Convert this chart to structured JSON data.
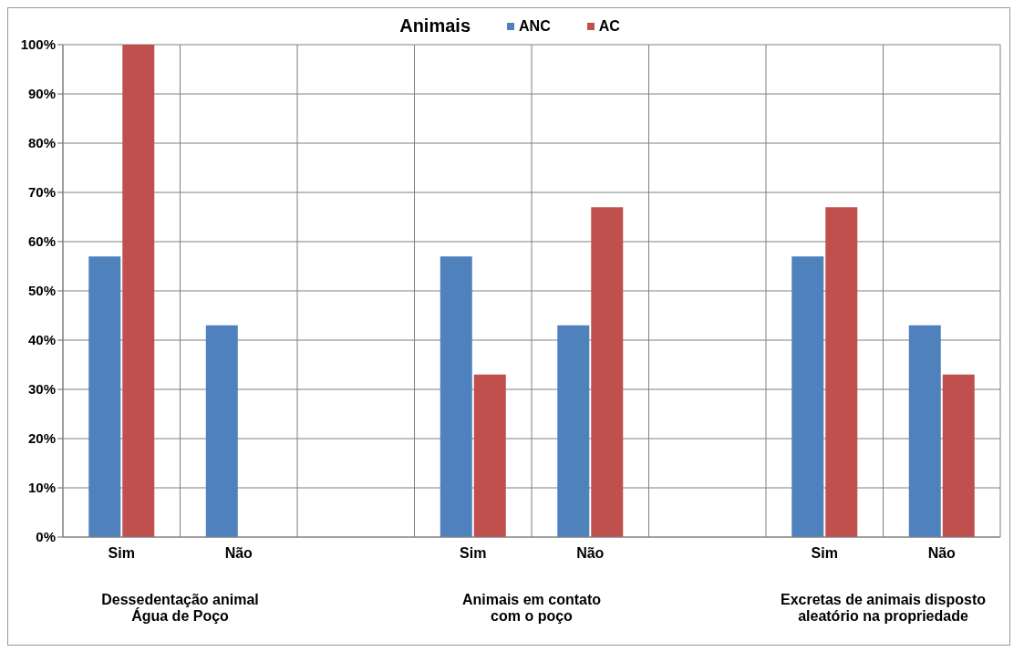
{
  "chart_data": {
    "type": "bar",
    "title": "Animais",
    "categories": [
      "Sim",
      "Não",
      null,
      "Sim",
      "Não",
      null,
      "Sim",
      "Não"
    ],
    "series": [
      {
        "name": "ANC",
        "color": "#4f81bd",
        "values": [
          57,
          43,
          null,
          57,
          43,
          null,
          57,
          43
        ]
      },
      {
        "name": "AC",
        "color": "#c0504d",
        "values": [
          100,
          0,
          null,
          33,
          67,
          null,
          67,
          33
        ]
      }
    ],
    "ylim": [
      0,
      100
    ],
    "yticks": [
      {
        "value": 0,
        "label": "0%"
      },
      {
        "value": 10,
        "label": "10%"
      },
      {
        "value": 20,
        "label": "20%"
      },
      {
        "value": 30,
        "label": "30%"
      },
      {
        "value": 40,
        "label": "40%"
      },
      {
        "value": 50,
        "label": "50%"
      },
      {
        "value": 60,
        "label": "60%"
      },
      {
        "value": 70,
        "label": "70%"
      },
      {
        "value": 80,
        "label": "80%"
      },
      {
        "value": 90,
        "label": "90%"
      },
      {
        "value": 100,
        "label": "100%"
      }
    ],
    "grid": true,
    "legend": "top",
    "annotations": [
      "Dessedentação animal\nÁgua de Poço",
      "Animais em contato\ncom o poço",
      "Excretas de animais disposto\naleatório na propriedade"
    ]
  }
}
